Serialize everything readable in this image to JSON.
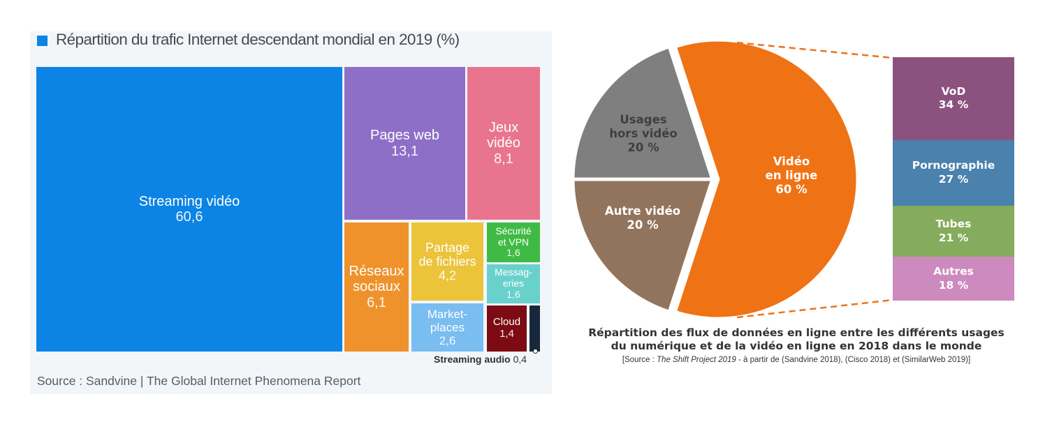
{
  "chart_data": [
    {
      "type": "treemap",
      "title": "Répartition du trafic Internet descendant mondial en 2019 (%)",
      "source": "Source : Sandvine | The Global Internet Phenomena Report",
      "unit": "%",
      "items": [
        {
          "label": "Streaming vidéo",
          "value": 60.6,
          "display": "60,6",
          "color": "#0b84e5"
        },
        {
          "label": "Pages web",
          "value": 13.1,
          "display": "13,1",
          "color": "#8e6fc7"
        },
        {
          "label": "Jeux\nvidéo",
          "value": 8.1,
          "display": "8,1",
          "color": "#e8758d"
        },
        {
          "label": "Réseaux\nsociaux",
          "value": 6.1,
          "display": "6,1",
          "color": "#ef922c"
        },
        {
          "label": "Partage\nde fichiers",
          "value": 4.2,
          "display": "4,2",
          "color": "#ebc43a"
        },
        {
          "label": "Market-\nplaces",
          "value": 2.6,
          "display": "2,6",
          "color": "#79bdf1"
        },
        {
          "label": "Sécurité\net VPN",
          "value": 1.6,
          "display": "1,6",
          "color": "#3fbb45"
        },
        {
          "label": "Messag-\neries",
          "value": 1.6,
          "display": "1,6",
          "color": "#68d1cb"
        },
        {
          "label": "Cloud",
          "value": 1.4,
          "display": "1,4",
          "color": "#7d0b14"
        },
        {
          "label": "Streaming audio",
          "value": 0.4,
          "display": "0,4",
          "color": "#14253a"
        }
      ]
    },
    {
      "type": "pie",
      "title": "Répartition des flux de données en ligne entre les différents usages du numérique et de la vidéo en ligne en 2018 dans le monde",
      "source_prefix": "[Source : ",
      "source_italic": "The Shift Project 2019",
      "source_suffix": " - à partir de (Sandvine 2018), (Cisco 2018) et (SimilarWeb 2019)]",
      "unit": "%",
      "slices": [
        {
          "label": "Vidéo\nen ligne",
          "value": 60,
          "display": "60 %",
          "color": "#ef7215",
          "text_color": "#ffffff"
        },
        {
          "label": "Autre vidéo",
          "value": 20,
          "display": "20 %",
          "color": "#8a7565",
          "hatch": true,
          "text_color": "#ffffff"
        },
        {
          "label": "Usages\nhors vidéo",
          "value": 20,
          "display": "20 %",
          "color": "#7f7f7f",
          "text_color": "#3f3f3f"
        }
      ],
      "breakdown_of": "Vidéo en ligne",
      "breakdown": [
        {
          "label": "VoD",
          "value": 34,
          "display": "34 %",
          "color": "#8b5280"
        },
        {
          "label": "Pornographie",
          "value": 27,
          "display": "27 %",
          "color": "#4a81ad"
        },
        {
          "label": "Tubes",
          "value": 21,
          "display": "21 %",
          "color": "#84ac5c"
        },
        {
          "label": "Autres",
          "value": 18,
          "display": "18 %",
          "color": "#cd8abf"
        }
      ]
    }
  ]
}
